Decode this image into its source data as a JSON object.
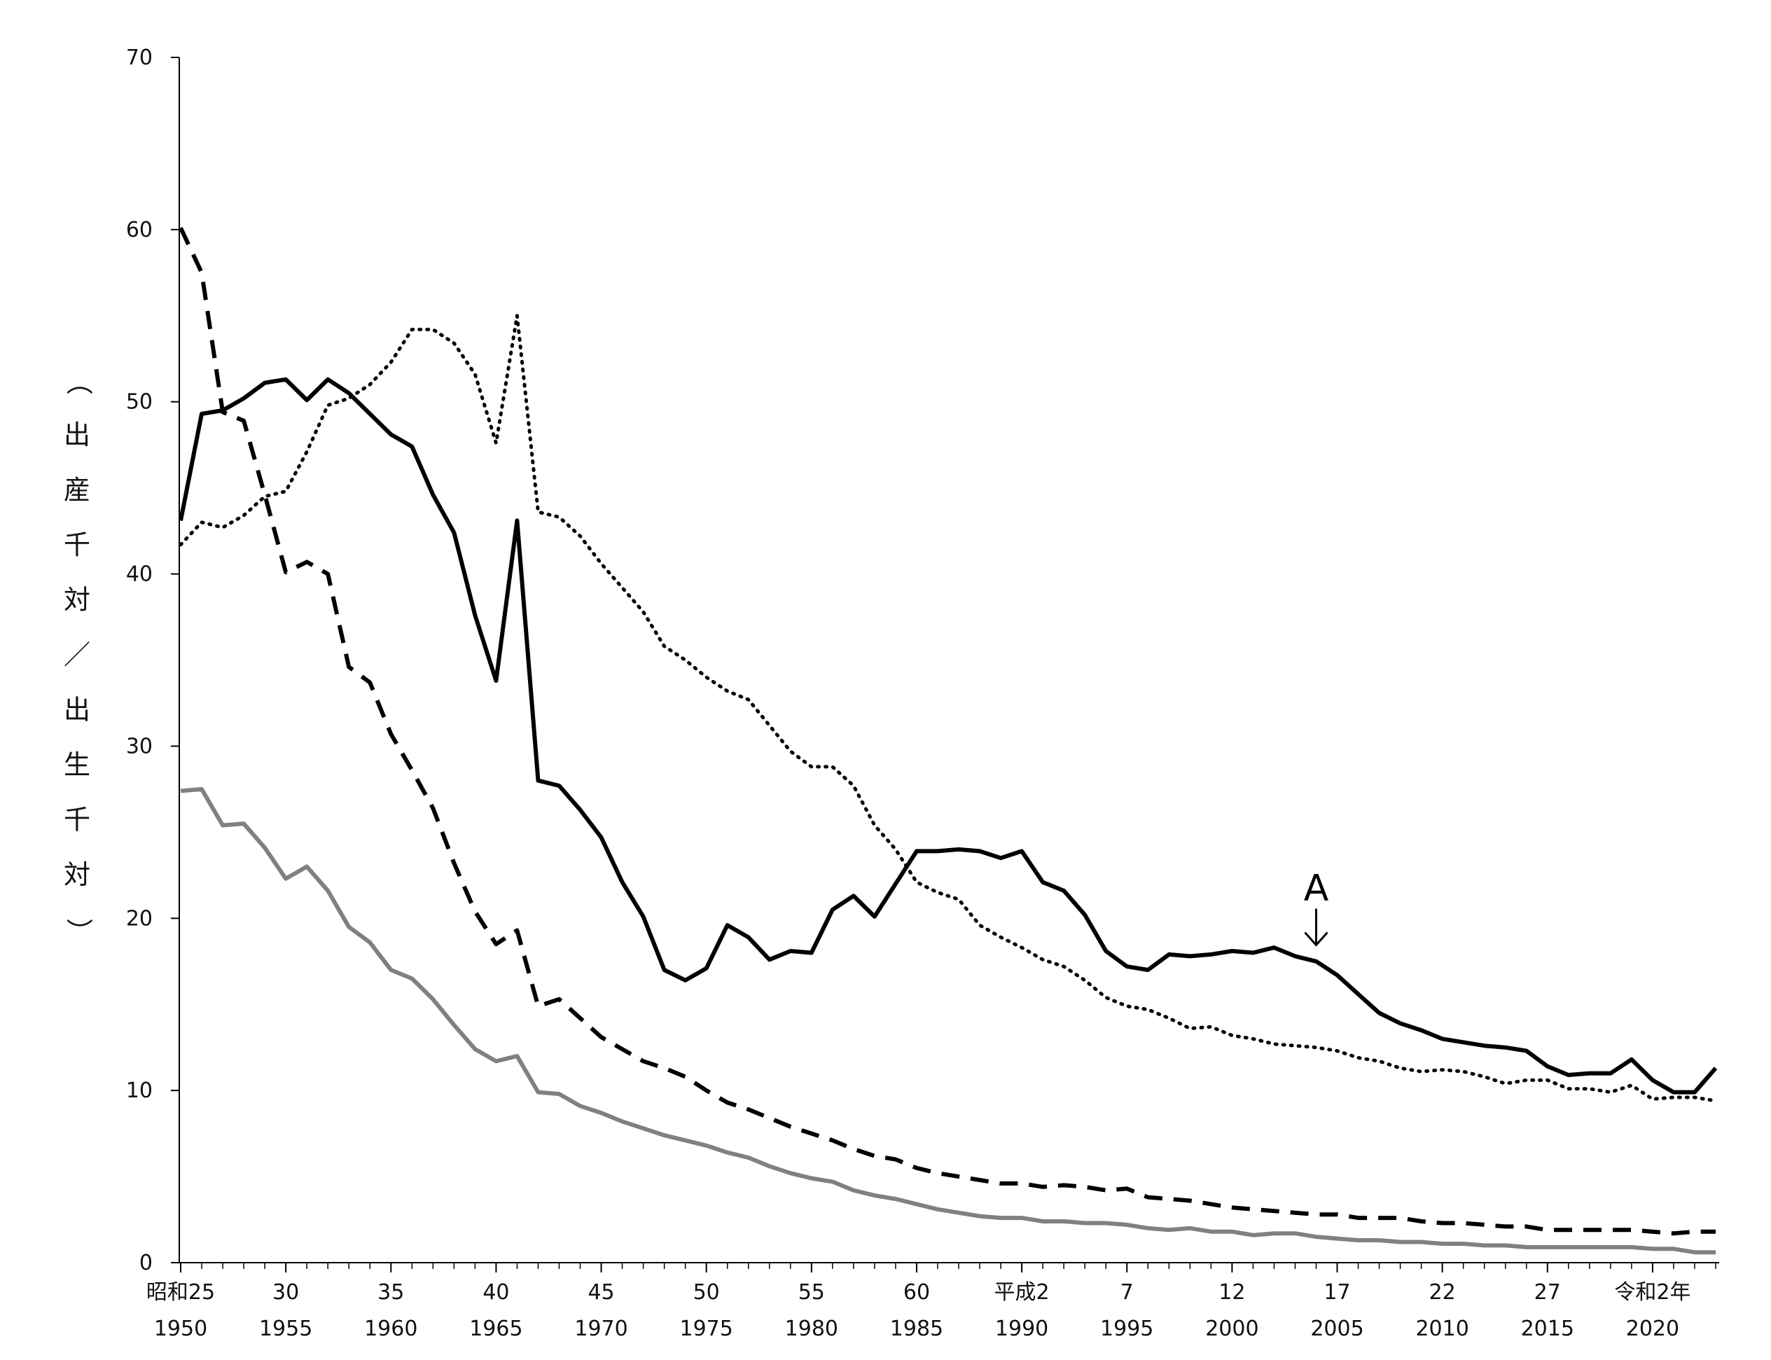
{
  "chart_data": {
    "type": "line",
    "title": "",
    "xlabel": "",
    "ylabel": "（出産千対／出生千対）",
    "ylim": [
      0,
      70
    ],
    "y_ticks": [
      0,
      10,
      20,
      30,
      40,
      50,
      60,
      70
    ],
    "xlim": [
      1950,
      2023
    ],
    "x_tick_labels": [
      {
        "year": 1950,
        "era": "昭和25",
        "western": "1950"
      },
      {
        "year": 1955,
        "era": "30",
        "western": "1955"
      },
      {
        "year": 1960,
        "era": "35",
        "western": "1960"
      },
      {
        "year": 1965,
        "era": "40",
        "western": "1965"
      },
      {
        "year": 1970,
        "era": "45",
        "western": "1970"
      },
      {
        "year": 1975,
        "era": "50",
        "western": "1975"
      },
      {
        "year": 1980,
        "era": "55",
        "western": "1980"
      },
      {
        "year": 1985,
        "era": "60",
        "western": "1985"
      },
      {
        "year": 1990,
        "era": "平成2",
        "western": "1990"
      },
      {
        "year": 1995,
        "era": "7",
        "western": "1995"
      },
      {
        "year": 2000,
        "era": "12",
        "western": "2000"
      },
      {
        "year": 2005,
        "era": "17",
        "western": "2005"
      },
      {
        "year": 2010,
        "era": "22",
        "western": "2010"
      },
      {
        "year": 2015,
        "era": "27",
        "western": "2015"
      },
      {
        "year": 2020,
        "era": "令和2年",
        "western": "2020"
      }
    ],
    "grid": false,
    "legend": "none",
    "annotation": {
      "text": "A",
      "x": 2004,
      "y": 18.2
    },
    "series": [
      {
        "style": "solid",
        "color": "#000000",
        "points": [
          [
            1950,
            43.1
          ],
          [
            1951,
            49.3
          ],
          [
            1952,
            49.5
          ],
          [
            1953,
            50.2
          ],
          [
            1954,
            51.1
          ],
          [
            1955,
            51.3
          ],
          [
            1956,
            50.1
          ],
          [
            1957,
            51.3
          ],
          [
            1958,
            50.5
          ],
          [
            1959,
            49.3
          ],
          [
            1960,
            48.1
          ],
          [
            1961,
            47.4
          ],
          [
            1962,
            44.6
          ],
          [
            1963,
            42.4
          ],
          [
            1964,
            37.6
          ],
          [
            1965,
            33.8
          ],
          [
            1966,
            43.1
          ],
          [
            1967,
            28.0
          ],
          [
            1968,
            27.7
          ],
          [
            1969,
            26.3
          ],
          [
            1970,
            24.7
          ],
          [
            1971,
            22.1
          ],
          [
            1972,
            20.1
          ],
          [
            1973,
            17.0
          ],
          [
            1974,
            16.4
          ],
          [
            1975,
            17.1
          ],
          [
            1976,
            19.6
          ],
          [
            1977,
            18.9
          ],
          [
            1978,
            17.6
          ],
          [
            1979,
            18.1
          ],
          [
            1980,
            18.0
          ],
          [
            1981,
            20.5
          ],
          [
            1982,
            21.3
          ],
          [
            1983,
            20.1
          ],
          [
            1984,
            22.0
          ],
          [
            1985,
            23.9
          ],
          [
            1986,
            23.9
          ],
          [
            1987,
            24.0
          ],
          [
            1988,
            23.9
          ],
          [
            1989,
            23.5
          ],
          [
            1990,
            23.9
          ],
          [
            1991,
            22.1
          ],
          [
            1992,
            21.6
          ],
          [
            1993,
            20.2
          ],
          [
            1994,
            18.1
          ],
          [
            1995,
            17.2
          ],
          [
            1996,
            17.0
          ],
          [
            1997,
            17.9
          ],
          [
            1998,
            17.8
          ],
          [
            1999,
            17.9
          ],
          [
            2000,
            18.1
          ],
          [
            2001,
            18.0
          ],
          [
            2002,
            18.3
          ],
          [
            2003,
            17.8
          ],
          [
            2004,
            17.5
          ],
          [
            2005,
            16.7
          ],
          [
            2006,
            15.6
          ],
          [
            2007,
            14.5
          ],
          [
            2008,
            13.9
          ],
          [
            2009,
            13.5
          ],
          [
            2010,
            13.0
          ],
          [
            2011,
            12.8
          ],
          [
            2012,
            12.6
          ],
          [
            2013,
            12.5
          ],
          [
            2014,
            12.3
          ],
          [
            2015,
            11.4
          ],
          [
            2016,
            10.9
          ],
          [
            2017,
            11.0
          ],
          [
            2018,
            11.0
          ],
          [
            2019,
            11.8
          ],
          [
            2020,
            10.6
          ],
          [
            2021,
            9.9
          ],
          [
            2022,
            9.9
          ],
          [
            2023,
            11.3
          ]
        ]
      },
      {
        "style": "dotted",
        "color": "#000000",
        "points": [
          [
            1950,
            41.7
          ],
          [
            1951,
            43.0
          ],
          [
            1952,
            42.7
          ],
          [
            1953,
            43.4
          ],
          [
            1954,
            44.5
          ],
          [
            1955,
            44.8
          ],
          [
            1956,
            47.1
          ],
          [
            1957,
            49.8
          ],
          [
            1958,
            50.2
          ],
          [
            1959,
            51.0
          ],
          [
            1960,
            52.3
          ],
          [
            1961,
            54.2
          ],
          [
            1962,
            54.2
          ],
          [
            1963,
            53.4
          ],
          [
            1964,
            51.6
          ],
          [
            1965,
            47.6
          ],
          [
            1966,
            55.0
          ],
          [
            1967,
            43.6
          ],
          [
            1968,
            43.3
          ],
          [
            1969,
            42.2
          ],
          [
            1970,
            40.6
          ],
          [
            1971,
            39.2
          ],
          [
            1972,
            37.8
          ],
          [
            1973,
            35.8
          ],
          [
            1974,
            35.0
          ],
          [
            1975,
            34.0
          ],
          [
            1976,
            33.2
          ],
          [
            1977,
            32.7
          ],
          [
            1978,
            31.2
          ],
          [
            1979,
            29.7
          ],
          [
            1980,
            28.8
          ],
          [
            1981,
            28.8
          ],
          [
            1982,
            27.7
          ],
          [
            1983,
            25.4
          ],
          [
            1984,
            24.0
          ],
          [
            1985,
            22.1
          ],
          [
            1986,
            21.5
          ],
          [
            1987,
            21.1
          ],
          [
            1988,
            19.6
          ],
          [
            1989,
            18.9
          ],
          [
            1990,
            18.3
          ],
          [
            1991,
            17.6
          ],
          [
            1992,
            17.2
          ],
          [
            1993,
            16.4
          ],
          [
            1994,
            15.4
          ],
          [
            1995,
            14.9
          ],
          [
            1996,
            14.7
          ],
          [
            1997,
            14.2
          ],
          [
            1998,
            13.6
          ],
          [
            1999,
            13.7
          ],
          [
            2000,
            13.2
          ],
          [
            2001,
            13.0
          ],
          [
            2002,
            12.7
          ],
          [
            2003,
            12.6
          ],
          [
            2004,
            12.5
          ],
          [
            2005,
            12.3
          ],
          [
            2006,
            11.9
          ],
          [
            2007,
            11.7
          ],
          [
            2008,
            11.3
          ],
          [
            2009,
            11.1
          ],
          [
            2010,
            11.2
          ],
          [
            2011,
            11.1
          ],
          [
            2012,
            10.8
          ],
          [
            2013,
            10.4
          ],
          [
            2014,
            10.6
          ],
          [
            2015,
            10.6
          ],
          [
            2016,
            10.1
          ],
          [
            2017,
            10.1
          ],
          [
            2018,
            9.9
          ],
          [
            2019,
            10.3
          ],
          [
            2020,
            9.5
          ],
          [
            2021,
            9.6
          ],
          [
            2022,
            9.6
          ],
          [
            2023,
            9.4
          ]
        ]
      },
      {
        "style": "dashed",
        "color": "#000000",
        "points": [
          [
            1950,
            60.1
          ],
          [
            1951,
            57.5
          ],
          [
            1952,
            49.4
          ],
          [
            1953,
            48.9
          ],
          [
            1954,
            44.6
          ],
          [
            1955,
            40.1
          ],
          [
            1956,
            40.7
          ],
          [
            1957,
            40.0
          ],
          [
            1958,
            34.6
          ],
          [
            1959,
            33.7
          ],
          [
            1960,
            30.7
          ],
          [
            1961,
            28.6
          ],
          [
            1962,
            26.4
          ],
          [
            1963,
            23.2
          ],
          [
            1964,
            20.4
          ],
          [
            1965,
            18.5
          ],
          [
            1966,
            19.3
          ],
          [
            1967,
            14.9
          ],
          [
            1968,
            15.3
          ],
          [
            1969,
            14.2
          ],
          [
            1970,
            13.1
          ],
          [
            1971,
            12.4
          ],
          [
            1972,
            11.7
          ],
          [
            1973,
            11.3
          ],
          [
            1974,
            10.8
          ],
          [
            1975,
            10.0
          ],
          [
            1976,
            9.3
          ],
          [
            1977,
            8.9
          ],
          [
            1978,
            8.4
          ],
          [
            1979,
            7.9
          ],
          [
            1980,
            7.5
          ],
          [
            1981,
            7.1
          ],
          [
            1982,
            6.6
          ],
          [
            1983,
            6.2
          ],
          [
            1984,
            6.0
          ],
          [
            1985,
            5.5
          ],
          [
            1986,
            5.2
          ],
          [
            1987,
            5.0
          ],
          [
            1988,
            4.8
          ],
          [
            1989,
            4.6
          ],
          [
            1990,
            4.6
          ],
          [
            1991,
            4.4
          ],
          [
            1992,
            4.5
          ],
          [
            1993,
            4.4
          ],
          [
            1994,
            4.2
          ],
          [
            1995,
            4.3
          ],
          [
            1996,
            3.8
          ],
          [
            1997,
            3.7
          ],
          [
            1998,
            3.6
          ],
          [
            1999,
            3.4
          ],
          [
            2000,
            3.2
          ],
          [
            2001,
            3.1
          ],
          [
            2002,
            3.0
          ],
          [
            2003,
            2.9
          ],
          [
            2004,
            2.8
          ],
          [
            2005,
            2.8
          ],
          [
            2006,
            2.6
          ],
          [
            2007,
            2.6
          ],
          [
            2008,
            2.6
          ],
          [
            2009,
            2.4
          ],
          [
            2010,
            2.3
          ],
          [
            2011,
            2.3
          ],
          [
            2012,
            2.2
          ],
          [
            2013,
            2.1
          ],
          [
            2014,
            2.1
          ],
          [
            2015,
            1.9
          ],
          [
            2016,
            1.9
          ],
          [
            2017,
            1.9
          ],
          [
            2018,
            1.9
          ],
          [
            2019,
            1.9
          ],
          [
            2020,
            1.8
          ],
          [
            2021,
            1.7
          ],
          [
            2022,
            1.8
          ],
          [
            2023,
            1.8
          ]
        ]
      },
      {
        "style": "solid",
        "color": "#808080",
        "points": [
          [
            1950,
            27.4
          ],
          [
            1951,
            27.5
          ],
          [
            1952,
            25.4
          ],
          [
            1953,
            25.5
          ],
          [
            1954,
            24.1
          ],
          [
            1955,
            22.3
          ],
          [
            1956,
            23.0
          ],
          [
            1957,
            21.6
          ],
          [
            1958,
            19.5
          ],
          [
            1959,
            18.6
          ],
          [
            1960,
            17.0
          ],
          [
            1961,
            16.5
          ],
          [
            1962,
            15.3
          ],
          [
            1963,
            13.8
          ],
          [
            1964,
            12.4
          ],
          [
            1965,
            11.7
          ],
          [
            1966,
            12.0
          ],
          [
            1967,
            9.9
          ],
          [
            1968,
            9.8
          ],
          [
            1969,
            9.1
          ],
          [
            1970,
            8.7
          ],
          [
            1971,
            8.2
          ],
          [
            1972,
            7.8
          ],
          [
            1973,
            7.4
          ],
          [
            1974,
            7.1
          ],
          [
            1975,
            6.8
          ],
          [
            1976,
            6.4
          ],
          [
            1977,
            6.1
          ],
          [
            1978,
            5.6
          ],
          [
            1979,
            5.2
          ],
          [
            1980,
            4.9
          ],
          [
            1981,
            4.7
          ],
          [
            1982,
            4.2
          ],
          [
            1983,
            3.9
          ],
          [
            1984,
            3.7
          ],
          [
            1985,
            3.4
          ],
          [
            1986,
            3.1
          ],
          [
            1987,
            2.9
          ],
          [
            1988,
            2.7
          ],
          [
            1989,
            2.6
          ],
          [
            1990,
            2.6
          ],
          [
            1991,
            2.4
          ],
          [
            1992,
            2.4
          ],
          [
            1993,
            2.3
          ],
          [
            1994,
            2.3
          ],
          [
            1995,
            2.2
          ],
          [
            1996,
            2.0
          ],
          [
            1997,
            1.9
          ],
          [
            1998,
            2.0
          ],
          [
            1999,
            1.8
          ],
          [
            2000,
            1.8
          ],
          [
            2001,
            1.6
          ],
          [
            2002,
            1.7
          ],
          [
            2003,
            1.7
          ],
          [
            2004,
            1.5
          ],
          [
            2005,
            1.4
          ],
          [
            2006,
            1.3
          ],
          [
            2007,
            1.3
          ],
          [
            2008,
            1.2
          ],
          [
            2009,
            1.2
          ],
          [
            2010,
            1.1
          ],
          [
            2011,
            1.1
          ],
          [
            2012,
            1.0
          ],
          [
            2013,
            1.0
          ],
          [
            2014,
            0.9
          ],
          [
            2015,
            0.9
          ],
          [
            2016,
            0.9
          ],
          [
            2017,
            0.9
          ],
          [
            2018,
            0.9
          ],
          [
            2019,
            0.9
          ],
          [
            2020,
            0.8
          ],
          [
            2021,
            0.8
          ],
          [
            2022,
            0.6
          ],
          [
            2023,
            0.6
          ]
        ]
      }
    ]
  }
}
